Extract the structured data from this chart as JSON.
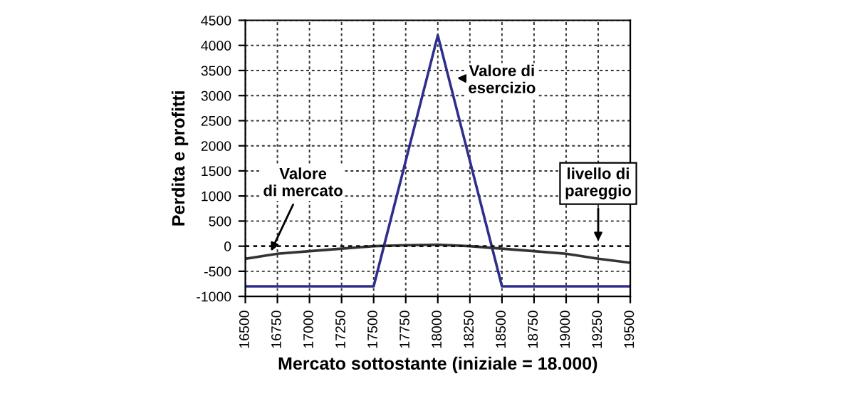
{
  "chart_data": {
    "type": "line",
    "xlabel": "Mercato sottostante (iniziale = 18.000)",
    "ylabel": "Perdita e profitti",
    "series": [
      {
        "color": "#2e2e8c",
        "x": [
          16500,
          17500,
          18000,
          18500,
          19500
        ],
        "values": [
          -800,
          -800,
          4200,
          -800,
          -800
        ]
      },
      {
        "color": "#333333",
        "x": [
          16500,
          16750,
          17000,
          17250,
          17500,
          17750,
          18000,
          18250,
          18500,
          18750,
          19000,
          19250,
          19500
        ],
        "values": [
          -250,
          -150,
          -100,
          -50,
          0,
          20,
          30,
          0,
          -50,
          -100,
          -150,
          -250,
          -330
        ]
      }
    ],
    "annotations": [
      {
        "text": "Valore di\nesercizio",
        "x": 18150,
        "y": 3350
      },
      {
        "text": "Valore\ndi mercato",
        "x": 16700,
        "y": -100
      }
    ],
    "ref_lines": [
      {
        "axis": "y",
        "value": 0,
        "label": "livello di\npareggio",
        "line_style": "dashed"
      }
    ],
    "xlim": [
      16500,
      19500
    ],
    "xticks": [
      16500,
      16750,
      17000,
      17250,
      17500,
      17750,
      18000,
      18250,
      18500,
      18750,
      19000,
      19250,
      19500
    ],
    "ylim": [
      -1000,
      4500
    ],
    "yticks": [
      -1000,
      -500,
      0,
      500,
      1000,
      1500,
      2000,
      2500,
      3000,
      3500,
      4000,
      4500
    ],
    "grid": true,
    "line_style": "solid",
    "marker": "none"
  }
}
